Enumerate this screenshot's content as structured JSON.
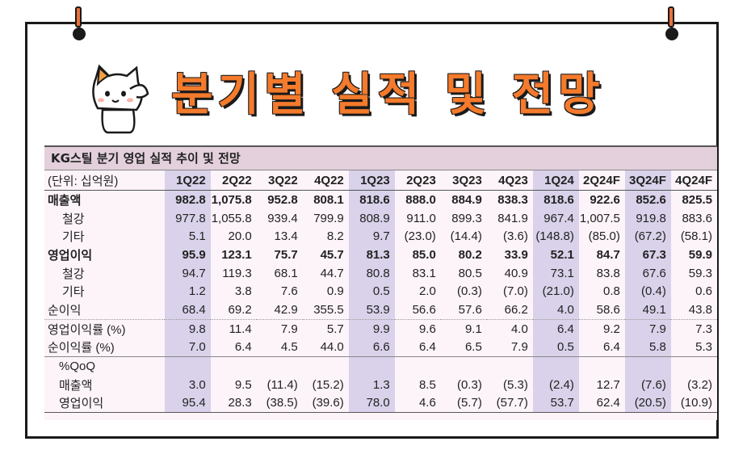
{
  "title": "분기별 실적 및 전망",
  "table": {
    "caption": "KG스틸 분기 영업 실적 추이 및 전망",
    "unit_label": "(단위: 십억원)",
    "quarters": [
      "1Q22",
      "2Q22",
      "3Q22",
      "4Q22",
      "1Q23",
      "2Q23",
      "3Q23",
      "4Q23",
      "1Q24",
      "2Q24F",
      "3Q24F",
      "4Q24F"
    ],
    "rows": [
      {
        "label": "매출액",
        "style": "bold",
        "values": [
          "982.8",
          "1,075.8",
          "952.8",
          "808.1",
          "818.6",
          "888.0",
          "884.9",
          "838.3",
          "818.6",
          "922.6",
          "852.6",
          "825.5"
        ]
      },
      {
        "label": "철강",
        "style": "sub",
        "values": [
          "977.8",
          "1,055.8",
          "939.4",
          "799.9",
          "808.9",
          "911.0",
          "899.3",
          "841.9",
          "967.4",
          "1,007.5",
          "919.8",
          "883.6"
        ]
      },
      {
        "label": "기타",
        "style": "sub",
        "values": [
          "5.1",
          "20.0",
          "13.4",
          "8.2",
          "9.7",
          "(23.0)",
          "(14.4)",
          "(3.6)",
          "(148.8)",
          "(85.0)",
          "(67.2)",
          "(58.1)"
        ]
      },
      {
        "label": "영업이익",
        "style": "bold",
        "values": [
          "95.9",
          "123.1",
          "75.7",
          "45.7",
          "81.3",
          "85.0",
          "80.2",
          "33.9",
          "52.1",
          "84.7",
          "67.3",
          "59.9"
        ]
      },
      {
        "label": "철강",
        "style": "sub",
        "values": [
          "94.7",
          "119.3",
          "68.1",
          "44.7",
          "80.8",
          "83.1",
          "80.5",
          "40.9",
          "73.1",
          "83.8",
          "67.6",
          "59.3"
        ]
      },
      {
        "label": "기타",
        "style": "sub",
        "values": [
          "1.2",
          "3.8",
          "7.6",
          "0.9",
          "0.5",
          "2.0",
          "(0.3)",
          "(7.0)",
          "(21.0)",
          "0.8",
          "(0.4)",
          "0.6"
        ]
      },
      {
        "label": "순이익",
        "style": "plain",
        "values": [
          "68.4",
          "69.2",
          "42.9",
          "355.5",
          "53.9",
          "56.6",
          "57.6",
          "66.2",
          "4.0",
          "58.6",
          "49.1",
          "43.8"
        ]
      },
      {
        "label": "영업이익률 (%)",
        "style": "sep",
        "values": [
          "9.8",
          "11.4",
          "7.9",
          "5.7",
          "9.9",
          "9.6",
          "9.1",
          "4.0",
          "6.4",
          "9.2",
          "7.9",
          "7.3"
        ]
      },
      {
        "label": "순이익률 (%)",
        "style": "plain",
        "values": [
          "7.0",
          "6.4",
          "4.5",
          "44.0",
          "6.6",
          "6.4",
          "6.5",
          "7.9",
          "0.5",
          "6.4",
          "5.8",
          "5.3"
        ]
      },
      {
        "label": "%QoQ",
        "style": "sepsolid",
        "values": [
          "",
          "",
          "",
          "",
          "",
          "",
          "",
          "",
          "",
          "",
          "",
          ""
        ]
      },
      {
        "label": "매출액",
        "style": "sub2",
        "values": [
          "3.0",
          "9.5",
          "(11.4)",
          "(15.2)",
          "1.3",
          "8.5",
          "(0.3)",
          "(5.3)",
          "(2.4)",
          "12.7",
          "(7.6)",
          "(3.2)"
        ]
      },
      {
        "label": "영업이익",
        "style": "sub2last",
        "values": [
          "95.4",
          "28.3",
          "(38.5)",
          "(39.6)",
          "78.0",
          "4.6",
          "(5.7)",
          "(57.7)",
          "53.7",
          "62.4",
          "(20.5)",
          "(10.9)"
        ]
      }
    ]
  }
}
